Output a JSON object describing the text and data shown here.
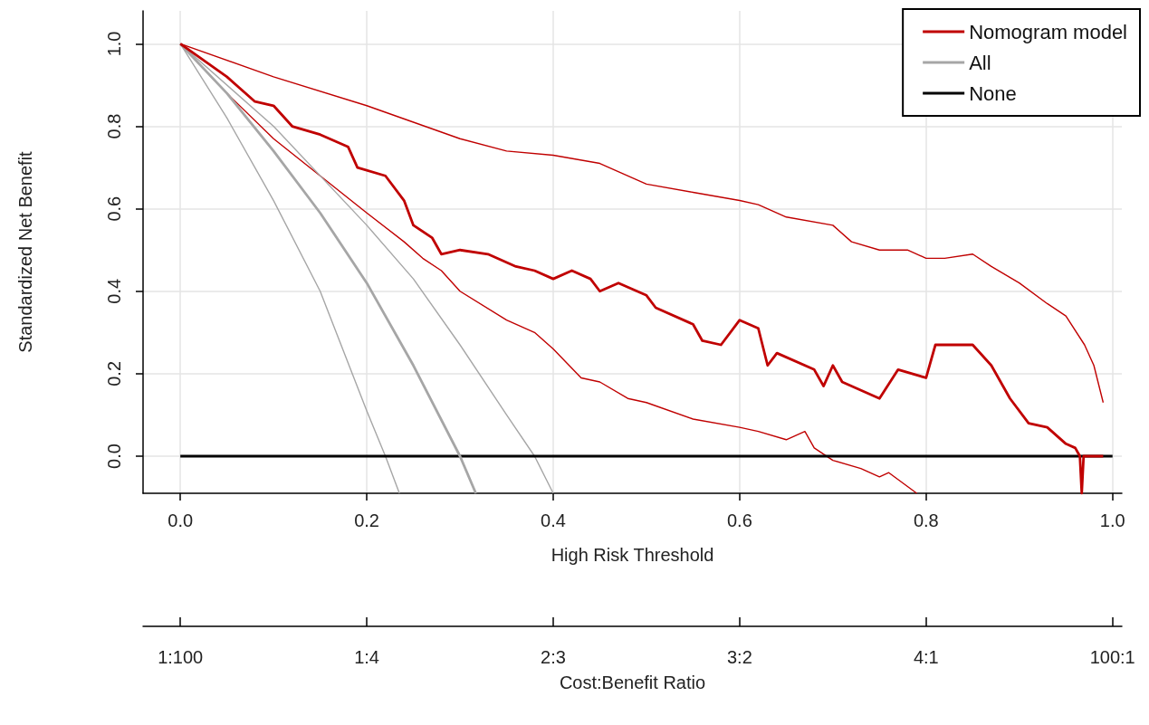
{
  "chart_data": {
    "type": "line",
    "xlabel": "High Risk Threshold",
    "ylabel": "Standardized Net Benefit",
    "x2label": "Cost:Benefit Ratio",
    "xlim": [
      -0.04,
      1.01
    ],
    "xticks": [
      {
        "value": 0,
        "label": "0.0"
      },
      0.2,
      0.4,
      0.6,
      0.8,
      {
        "value": 1,
        "label": "1.0"
      }
    ],
    "ylim": [
      -0.09,
      1.08
    ],
    "yticks": [
      {
        "value": 0,
        "label": "0.0"
      },
      0.2,
      0.4,
      0.6,
      0.8,
      {
        "value": 1,
        "label": "1.0"
      }
    ],
    "annotations": [
      "1:100",
      "1:4",
      "2:3",
      "3:2",
      "4:1",
      "100:1"
    ],
    "grid": true,
    "legend": "top right",
    "series": [
      {
        "name": "Nomogram model",
        "color": "#c00000",
        "x": [
          0,
          0.05,
          0.08,
          0.1,
          0.12,
          0.15,
          0.18,
          0.19,
          0.22,
          0.24,
          0.25,
          0.27,
          0.28,
          0.3,
          0.33,
          0.36,
          0.38,
          0.4,
          0.42,
          0.44,
          0.45,
          0.47,
          0.5,
          0.51,
          0.55,
          0.56,
          0.58,
          0.6,
          0.62,
          0.63,
          0.64,
          0.68,
          0.69,
          0.7,
          0.71,
          0.75,
          0.77,
          0.8,
          0.81,
          0.85,
          0.87,
          0.89,
          0.91,
          0.93,
          0.95,
          0.96,
          0.965,
          0.967,
          0.969,
          0.99
        ],
        "values": [
          1,
          0.92,
          0.86,
          0.85,
          0.8,
          0.78,
          0.75,
          0.7,
          0.68,
          0.62,
          0.56,
          0.53,
          0.49,
          0.5,
          0.49,
          0.46,
          0.45,
          0.43,
          0.45,
          0.43,
          0.4,
          0.42,
          0.39,
          0.36,
          0.32,
          0.28,
          0.27,
          0.33,
          0.31,
          0.22,
          0.25,
          0.21,
          0.17,
          0.22,
          0.18,
          0.14,
          0.21,
          0.19,
          0.27,
          0.27,
          0.22,
          0.14,
          0.08,
          0.07,
          0.03,
          0.02,
          0,
          -0.09,
          0,
          0
        ]
      },
      {
        "name": "All",
        "color": "#a6a6a6",
        "x": [
          0,
          0.05,
          0.1,
          0.15,
          0.2,
          0.25,
          0.3,
          0.317
        ],
        "values": [
          1,
          0.88,
          0.74,
          0.59,
          0.42,
          0.22,
          0,
          -0.09
        ]
      },
      {
        "name": "None",
        "color": "#000000",
        "x": [
          0,
          1
        ],
        "values": [
          0,
          0
        ]
      },
      {
        "color": "#a6a6a6",
        "x": [
          0,
          0.05,
          0.1,
          0.15,
          0.2,
          0.22,
          0.235
        ],
        "values": [
          1,
          0.82,
          0.62,
          0.4,
          0.11,
          0,
          -0.09
        ]
      },
      {
        "color": "#a6a6a6",
        "x": [
          0,
          0.1,
          0.2,
          0.25,
          0.3,
          0.35,
          0.38,
          0.4
        ],
        "values": [
          1,
          0.8,
          0.56,
          0.43,
          0.27,
          0.1,
          0,
          -0.09
        ]
      },
      {
        "color": "#c00000",
        "x": [
          0,
          0.1,
          0.2,
          0.25,
          0.3,
          0.35,
          0.4,
          0.45,
          0.5,
          0.55,
          0.6,
          0.62,
          0.65,
          0.7,
          0.72,
          0.75,
          0.78,
          0.8,
          0.82,
          0.85,
          0.87,
          0.9,
          0.93,
          0.95,
          0.97,
          0.98,
          0.99
        ],
        "values": [
          1,
          0.92,
          0.85,
          0.81,
          0.77,
          0.74,
          0.73,
          0.71,
          0.66,
          0.64,
          0.62,
          0.61,
          0.58,
          0.56,
          0.52,
          0.5,
          0.5,
          0.48,
          0.48,
          0.49,
          0.46,
          0.42,
          0.37,
          0.34,
          0.27,
          0.22,
          0.13
        ]
      },
      {
        "color": "#c00000",
        "x": [
          0,
          0.05,
          0.1,
          0.15,
          0.2,
          0.24,
          0.26,
          0.28,
          0.3,
          0.35,
          0.38,
          0.4,
          0.43,
          0.45,
          0.48,
          0.5,
          0.55,
          0.6,
          0.62,
          0.65,
          0.67,
          0.68,
          0.7,
          0.73,
          0.75,
          0.76,
          0.79
        ],
        "values": [
          1,
          0.88,
          0.77,
          0.68,
          0.59,
          0.52,
          0.48,
          0.45,
          0.4,
          0.33,
          0.3,
          0.26,
          0.19,
          0.18,
          0.14,
          0.13,
          0.09,
          0.07,
          0.06,
          0.04,
          0.06,
          0.02,
          -0.01,
          -0.03,
          -0.05,
          -0.04,
          -0.09
        ]
      }
    ]
  }
}
